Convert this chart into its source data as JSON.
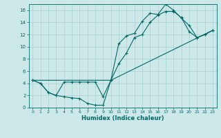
{
  "xlabel": "Humidex (Indice chaleur)",
  "bg_color": "#cde8e8",
  "grid_color": "#a8d0d0",
  "line_color": "#006868",
  "xlim": [
    -0.5,
    23.5
  ],
  "ylim": [
    0,
    17
  ],
  "xticks": [
    0,
    1,
    2,
    3,
    4,
    5,
    6,
    7,
    8,
    9,
    10,
    11,
    12,
    13,
    14,
    15,
    16,
    17,
    18,
    19,
    20,
    21,
    22,
    23
  ],
  "yticks": [
    0,
    2,
    4,
    6,
    8,
    10,
    12,
    14,
    16
  ],
  "line1_x": [
    0,
    1,
    2,
    3,
    4,
    5,
    6,
    7,
    8,
    9,
    10,
    11,
    12,
    13,
    14,
    15,
    16,
    17,
    18,
    19,
    20,
    21,
    22,
    23
  ],
  "line1_y": [
    4.5,
    4.0,
    2.5,
    2.0,
    1.8,
    1.6,
    1.5,
    0.7,
    0.4,
    0.4,
    4.5,
    7.2,
    9.0,
    11.5,
    12.0,
    14.0,
    15.2,
    15.8,
    15.8,
    14.8,
    12.5,
    11.5,
    12.0,
    12.7
  ],
  "line2_x": [
    0,
    1,
    2,
    3,
    4,
    5,
    6,
    7,
    8,
    9,
    10,
    11,
    12,
    13,
    14,
    15,
    16,
    17,
    18,
    19,
    20,
    21,
    22,
    23
  ],
  "line2_y": [
    4.5,
    4.0,
    2.5,
    2.0,
    4.2,
    4.2,
    4.2,
    4.2,
    4.2,
    1.8,
    4.5,
    10.5,
    11.8,
    12.2,
    14.2,
    15.5,
    15.3,
    17.0,
    16.0,
    14.7,
    13.5,
    11.5,
    12.0,
    12.7
  ],
  "line3_x": [
    0,
    1,
    10,
    23
  ],
  "line3_y": [
    4.5,
    4.5,
    4.5,
    12.7
  ]
}
